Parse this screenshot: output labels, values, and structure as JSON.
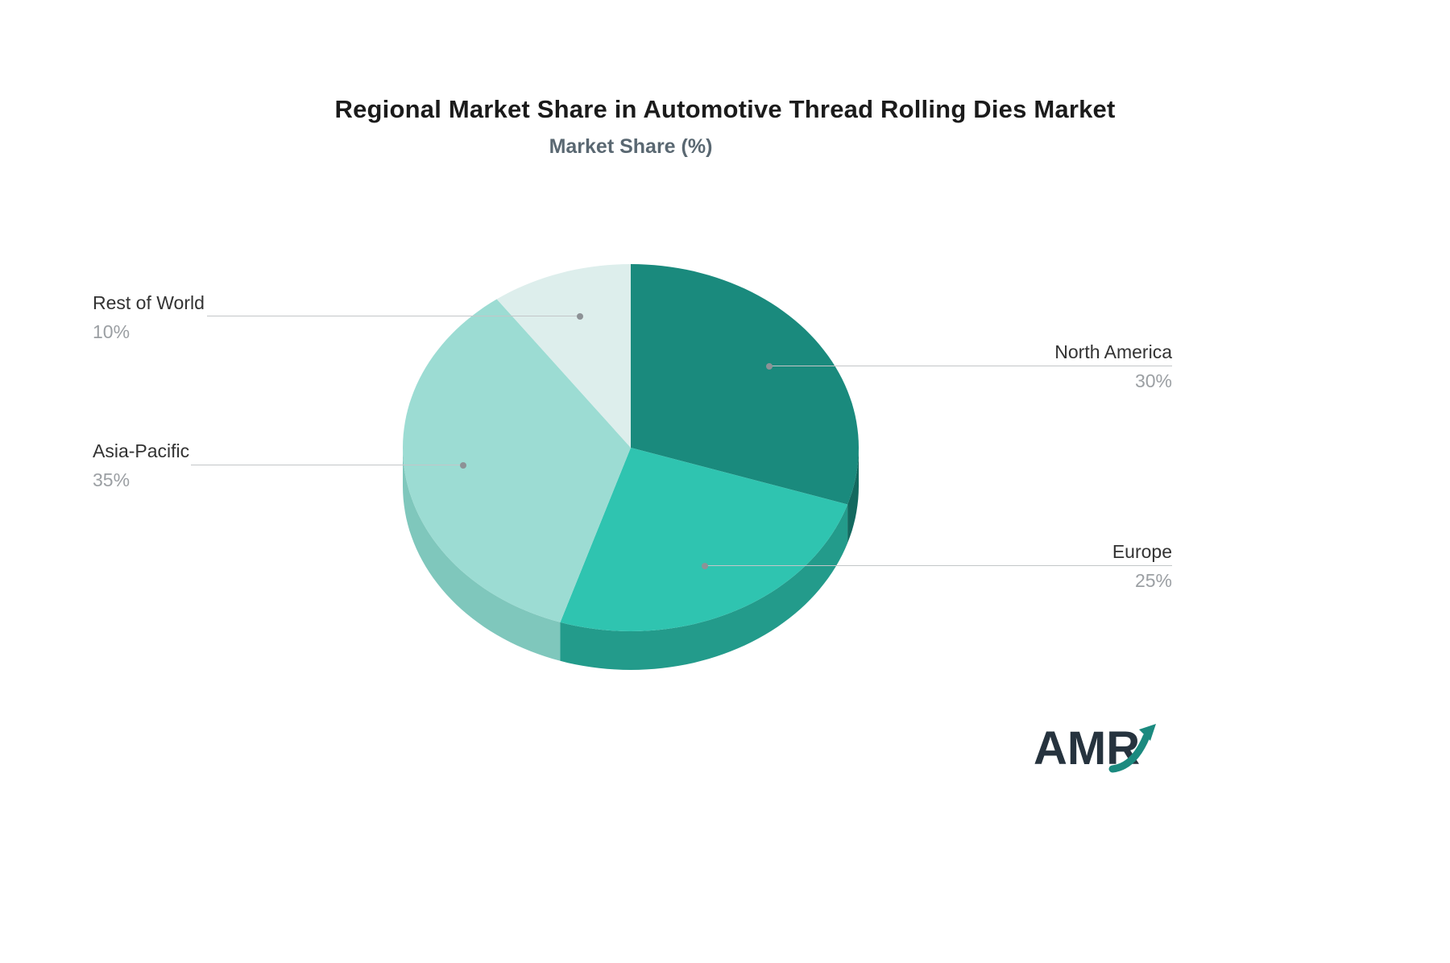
{
  "header": {
    "title": "Regional Market Share in Automotive Thread Rolling Dies Market",
    "subtitle": "Market Share (%)"
  },
  "chart_data": {
    "type": "pie",
    "title": "Regional Market Share in Automotive Thread Rolling Dies Market",
    "subtitle": "Market Share (%)",
    "unit": "%",
    "style": "3d-pie",
    "start_angle": "12 o'clock",
    "direction": "clockwise",
    "slices": [
      {
        "label": "North America",
        "value": 30,
        "value_label": "30%",
        "color": "#1a8a7d",
        "side_color": "#13695f"
      },
      {
        "label": "Europe",
        "value": 25,
        "value_label": "25%",
        "color": "#2fc4b0",
        "side_color": "#239b8b"
      },
      {
        "label": "Asia-Pacific",
        "value": 35,
        "value_label": "35%",
        "color": "#9cdcd3",
        "side_color": "#7fc7bc"
      },
      {
        "label": "Rest of World",
        "value": 10,
        "value_label": "10%",
        "color": "#ddeeec",
        "side_color": "#c0dcd8"
      }
    ]
  },
  "logo": {
    "text": "AMR",
    "arrow_color": "#1b8a7f"
  }
}
